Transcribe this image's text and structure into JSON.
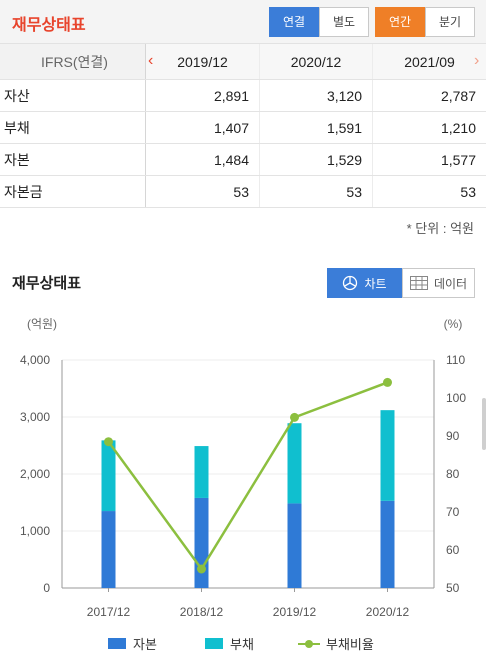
{
  "header": {
    "title": "재무상태표",
    "scope_tabs": [
      {
        "label": "연결",
        "active": true
      },
      {
        "label": "별도",
        "active": false
      }
    ],
    "period_tabs": [
      {
        "label": "연간",
        "active": true
      },
      {
        "label": "분기",
        "active": false
      }
    ]
  },
  "table": {
    "standard_label": "IFRS(연결)",
    "columns": [
      "2019/12",
      "2020/12",
      "2021/09"
    ],
    "rows": [
      {
        "label": "자산",
        "values": [
          "2,891",
          "3,120",
          "2,787"
        ]
      },
      {
        "label": "부채",
        "values": [
          "1,407",
          "1,591",
          "1,210"
        ]
      },
      {
        "label": "자본",
        "values": [
          "1,484",
          "1,529",
          "1,577"
        ]
      },
      {
        "label": "자본금",
        "values": [
          "53",
          "53",
          "53"
        ]
      }
    ],
    "unit_note": "* 단위 : 억원"
  },
  "chart_section": {
    "title": "재무상태표",
    "chart_toggle": "차트",
    "data_toggle": "데이터"
  },
  "chart_data": {
    "type": "bar",
    "stacked": true,
    "categories": [
      "2017/12",
      "2018/12",
      "2019/12",
      "2020/12"
    ],
    "series": [
      {
        "name": "자본",
        "values": [
          1350,
          1580,
          1484,
          1529
        ],
        "color": "#2f7ad6"
      },
      {
        "name": "부채",
        "values": [
          1240,
          910,
          1407,
          1591
        ],
        "color": "#10bfcf"
      },
      {
        "name": "부채비율",
        "type": "line",
        "axis": "right",
        "values": [
          88.5,
          55.0,
          94.9,
          104.1
        ],
        "color": "#8cbf3f"
      }
    ],
    "left_axis": {
      "unit": "(억원)",
      "ylim": [
        0,
        4000
      ],
      "ticks": [
        "4,000",
        "3,000",
        "2,000",
        "1,000",
        "0"
      ]
    },
    "right_axis": {
      "unit": "(%)",
      "ylim": [
        50,
        110
      ],
      "ticks": [
        "110",
        "100",
        "90",
        "80",
        "70",
        "60",
        "50"
      ]
    },
    "legend_position": "bottom"
  }
}
